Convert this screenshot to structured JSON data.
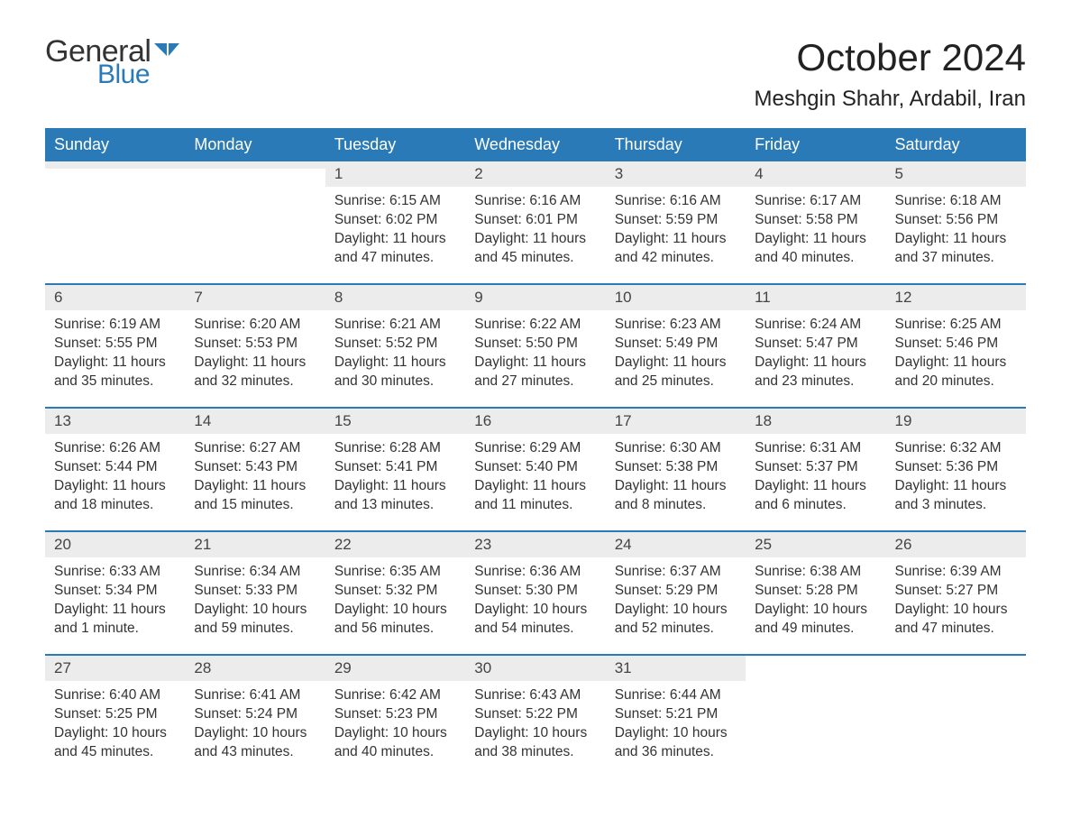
{
  "brand": {
    "word1": "General",
    "word2": "Blue"
  },
  "title": "October 2024",
  "location": "Meshgin Shahr, Ardabil, Iran",
  "colors": {
    "header_bg": "#2a7ab8",
    "header_text": "#ffffff",
    "daynum_bg": "#ececec",
    "week_border": "#2a7ab8",
    "text": "#333333",
    "brand_blue": "#2a7ab8",
    "background": "#ffffff"
  },
  "typography": {
    "month_title_size_pt": 32,
    "location_size_pt": 18,
    "weekday_size_pt": 14,
    "daynum_size_pt": 13,
    "body_size_pt": 12,
    "font_family": "Arial"
  },
  "weekdays": [
    "Sunday",
    "Monday",
    "Tuesday",
    "Wednesday",
    "Thursday",
    "Friday",
    "Saturday"
  ],
  "weeks": [
    [
      {
        "day": "",
        "sunrise": "",
        "sunset": "",
        "daylight": ""
      },
      {
        "day": "",
        "sunrise": "",
        "sunset": "",
        "daylight": ""
      },
      {
        "day": "1",
        "sunrise": "Sunrise: 6:15 AM",
        "sunset": "Sunset: 6:02 PM",
        "daylight": "Daylight: 11 hours and 47 minutes."
      },
      {
        "day": "2",
        "sunrise": "Sunrise: 6:16 AM",
        "sunset": "Sunset: 6:01 PM",
        "daylight": "Daylight: 11 hours and 45 minutes."
      },
      {
        "day": "3",
        "sunrise": "Sunrise: 6:16 AM",
        "sunset": "Sunset: 5:59 PM",
        "daylight": "Daylight: 11 hours and 42 minutes."
      },
      {
        "day": "4",
        "sunrise": "Sunrise: 6:17 AM",
        "sunset": "Sunset: 5:58 PM",
        "daylight": "Daylight: 11 hours and 40 minutes."
      },
      {
        "day": "5",
        "sunrise": "Sunrise: 6:18 AM",
        "sunset": "Sunset: 5:56 PM",
        "daylight": "Daylight: 11 hours and 37 minutes."
      }
    ],
    [
      {
        "day": "6",
        "sunrise": "Sunrise: 6:19 AM",
        "sunset": "Sunset: 5:55 PM",
        "daylight": "Daylight: 11 hours and 35 minutes."
      },
      {
        "day": "7",
        "sunrise": "Sunrise: 6:20 AM",
        "sunset": "Sunset: 5:53 PM",
        "daylight": "Daylight: 11 hours and 32 minutes."
      },
      {
        "day": "8",
        "sunrise": "Sunrise: 6:21 AM",
        "sunset": "Sunset: 5:52 PM",
        "daylight": "Daylight: 11 hours and 30 minutes."
      },
      {
        "day": "9",
        "sunrise": "Sunrise: 6:22 AM",
        "sunset": "Sunset: 5:50 PM",
        "daylight": "Daylight: 11 hours and 27 minutes."
      },
      {
        "day": "10",
        "sunrise": "Sunrise: 6:23 AM",
        "sunset": "Sunset: 5:49 PM",
        "daylight": "Daylight: 11 hours and 25 minutes."
      },
      {
        "day": "11",
        "sunrise": "Sunrise: 6:24 AM",
        "sunset": "Sunset: 5:47 PM",
        "daylight": "Daylight: 11 hours and 23 minutes."
      },
      {
        "day": "12",
        "sunrise": "Sunrise: 6:25 AM",
        "sunset": "Sunset: 5:46 PM",
        "daylight": "Daylight: 11 hours and 20 minutes."
      }
    ],
    [
      {
        "day": "13",
        "sunrise": "Sunrise: 6:26 AM",
        "sunset": "Sunset: 5:44 PM",
        "daylight": "Daylight: 11 hours and 18 minutes."
      },
      {
        "day": "14",
        "sunrise": "Sunrise: 6:27 AM",
        "sunset": "Sunset: 5:43 PM",
        "daylight": "Daylight: 11 hours and 15 minutes."
      },
      {
        "day": "15",
        "sunrise": "Sunrise: 6:28 AM",
        "sunset": "Sunset: 5:41 PM",
        "daylight": "Daylight: 11 hours and 13 minutes."
      },
      {
        "day": "16",
        "sunrise": "Sunrise: 6:29 AM",
        "sunset": "Sunset: 5:40 PM",
        "daylight": "Daylight: 11 hours and 11 minutes."
      },
      {
        "day": "17",
        "sunrise": "Sunrise: 6:30 AM",
        "sunset": "Sunset: 5:38 PM",
        "daylight": "Daylight: 11 hours and 8 minutes."
      },
      {
        "day": "18",
        "sunrise": "Sunrise: 6:31 AM",
        "sunset": "Sunset: 5:37 PM",
        "daylight": "Daylight: 11 hours and 6 minutes."
      },
      {
        "day": "19",
        "sunrise": "Sunrise: 6:32 AM",
        "sunset": "Sunset: 5:36 PM",
        "daylight": "Daylight: 11 hours and 3 minutes."
      }
    ],
    [
      {
        "day": "20",
        "sunrise": "Sunrise: 6:33 AM",
        "sunset": "Sunset: 5:34 PM",
        "daylight": "Daylight: 11 hours and 1 minute."
      },
      {
        "day": "21",
        "sunrise": "Sunrise: 6:34 AM",
        "sunset": "Sunset: 5:33 PM",
        "daylight": "Daylight: 10 hours and 59 minutes."
      },
      {
        "day": "22",
        "sunrise": "Sunrise: 6:35 AM",
        "sunset": "Sunset: 5:32 PM",
        "daylight": "Daylight: 10 hours and 56 minutes."
      },
      {
        "day": "23",
        "sunrise": "Sunrise: 6:36 AM",
        "sunset": "Sunset: 5:30 PM",
        "daylight": "Daylight: 10 hours and 54 minutes."
      },
      {
        "day": "24",
        "sunrise": "Sunrise: 6:37 AM",
        "sunset": "Sunset: 5:29 PM",
        "daylight": "Daylight: 10 hours and 52 minutes."
      },
      {
        "day": "25",
        "sunrise": "Sunrise: 6:38 AM",
        "sunset": "Sunset: 5:28 PM",
        "daylight": "Daylight: 10 hours and 49 minutes."
      },
      {
        "day": "26",
        "sunrise": "Sunrise: 6:39 AM",
        "sunset": "Sunset: 5:27 PM",
        "daylight": "Daylight: 10 hours and 47 minutes."
      }
    ],
    [
      {
        "day": "27",
        "sunrise": "Sunrise: 6:40 AM",
        "sunset": "Sunset: 5:25 PM",
        "daylight": "Daylight: 10 hours and 45 minutes."
      },
      {
        "day": "28",
        "sunrise": "Sunrise: 6:41 AM",
        "sunset": "Sunset: 5:24 PM",
        "daylight": "Daylight: 10 hours and 43 minutes."
      },
      {
        "day": "29",
        "sunrise": "Sunrise: 6:42 AM",
        "sunset": "Sunset: 5:23 PM",
        "daylight": "Daylight: 10 hours and 40 minutes."
      },
      {
        "day": "30",
        "sunrise": "Sunrise: 6:43 AM",
        "sunset": "Sunset: 5:22 PM",
        "daylight": "Daylight: 10 hours and 38 minutes."
      },
      {
        "day": "31",
        "sunrise": "Sunrise: 6:44 AM",
        "sunset": "Sunset: 5:21 PM",
        "daylight": "Daylight: 10 hours and 36 minutes."
      },
      {
        "day": "",
        "sunrise": "",
        "sunset": "",
        "daylight": ""
      },
      {
        "day": "",
        "sunrise": "",
        "sunset": "",
        "daylight": ""
      }
    ]
  ]
}
